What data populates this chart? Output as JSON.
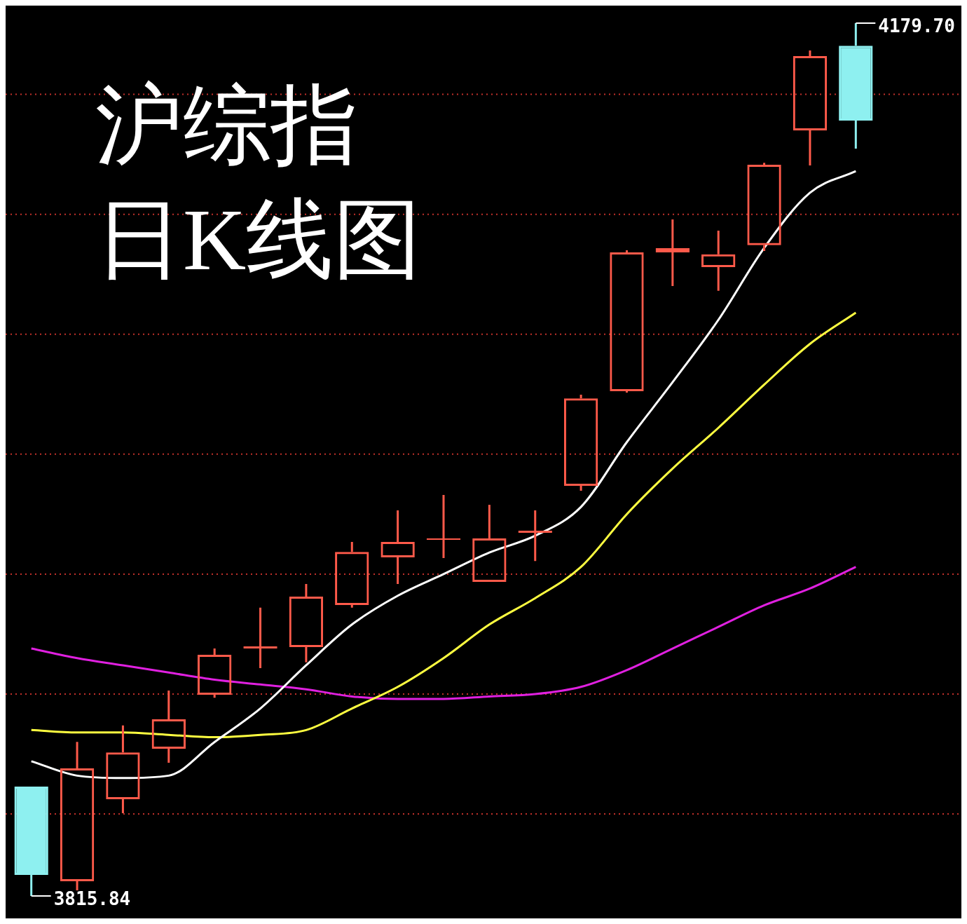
{
  "chart_data": {
    "type": "candlestick",
    "title": "沪综指日K线图",
    "categories": [
      null,
      null,
      null,
      null,
      null,
      null,
      null,
      null,
      null,
      null,
      null,
      null,
      null,
      null,
      null,
      null,
      null,
      null,
      null
    ],
    "ohlc": [
      [
        3861.4,
        3861.4,
        3815.84,
        3824.6
      ],
      [
        3822.0,
        3880.1,
        3818.2,
        3869.0
      ],
      [
        3856.2,
        3886.9,
        3850.3,
        3875.7
      ],
      [
        3877.2,
        3901.5,
        3871.4,
        3889.5
      ],
      [
        3899.7,
        3919.0,
        3898.5,
        3916.4
      ],
      [
        3919.0,
        3936.0,
        3910.8,
        3919.9
      ],
      [
        3919.6,
        3945.9,
        3913.2,
        3940.6
      ],
      [
        3937.1,
        3963.4,
        3936.0,
        3959.3
      ],
      [
        3957.0,
        3976.6,
        3945.9,
        3963.4
      ],
      [
        3964.3,
        3983.0,
        3956.7,
        3964.9
      ],
      [
        3946.8,
        3978.9,
        3946.8,
        3964.9
      ],
      [
        3967.2,
        3976.6,
        3955.5,
        3968.1
      ],
      [
        3986.8,
        4024.8,
        3984.8,
        4023.3
      ],
      [
        4026.3,
        4085.0,
        4025.7,
        4084.1
      ],
      [
        4084.1,
        4097.9,
        4070.1,
        4085.9
      ],
      [
        4078.0,
        4093.2,
        4068.1,
        4083.3
      ],
      [
        4087.1,
        4121.5,
        4084.7,
        4120.7
      ],
      [
        4135.0,
        4168.3,
        4120.4,
        4166.0
      ],
      [
        4170.3,
        4179.7,
        4127.4,
        4139.1
      ]
    ],
    "colors": [
      "#8ef0f0",
      "#ff5a4a",
      "#ff5a4a",
      "#ff5a4a",
      "#ff5a4a",
      "#ff5a4a",
      "#ff5a4a",
      "#ff5a4a",
      "#ff5a4a",
      "#ff5a4a",
      "#ff5a4a",
      "#ff5a4a",
      "#ff5a4a",
      "#ff5a4a",
      "#ff5a4a",
      "#ff5a4a",
      "#ff5a4a",
      "#ff5a4a",
      "#8ef0f0"
    ],
    "series": [
      {
        "type": "line",
        "color": "#ffffff",
        "values": [
          3872,
          3866,
          3865,
          3866,
          3880,
          3894,
          3912,
          3929,
          3941,
          3950,
          3959,
          3966,
          3978,
          4005,
          4030,
          4056,
          4086,
          4109,
          4118
        ]
      },
      {
        "type": "line",
        "color": "#ffff40",
        "values": [
          3885,
          3884,
          3884,
          3883,
          3882,
          3883,
          3885,
          3894,
          3903,
          3915,
          3929,
          3940,
          3953,
          3975,
          3994,
          4011,
          4029,
          4046,
          4059
        ]
      },
      {
        "type": "line",
        "color": "#e020e0",
        "values": [
          3919,
          3915,
          3912,
          3909,
          3906,
          3904,
          3902,
          3899,
          3898,
          3898,
          3899,
          3900,
          3903,
          3910,
          3919,
          3928,
          3937,
          3944,
          3953
        ]
      }
    ],
    "yticks": [
      {
        "value": 3850,
        "label": null
      },
      {
        "value": 3900,
        "label": null
      },
      {
        "value": 3950,
        "label": null
      },
      {
        "value": 4000,
        "label": null
      },
      {
        "value": 4050,
        "label": null
      },
      {
        "value": 4100,
        "label": null
      },
      {
        "value": 4150,
        "label": null
      }
    ],
    "grid": "y",
    "annotations": [
      "4179.70",
      "3815.84"
    ]
  }
}
